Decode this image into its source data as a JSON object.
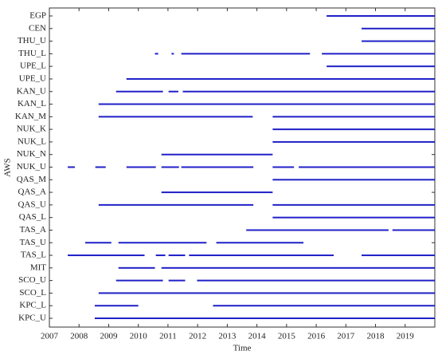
{
  "chart_data": {
    "type": "timeline",
    "x_label": "Time",
    "y_label": "AWS",
    "categories": [
      "EGP",
      "CEN",
      "THU_U",
      "THU_L",
      "UPE_L",
      "UPE_U",
      "KAN_U",
      "KAN_L",
      "KAN_M",
      "NUK_K",
      "NUK_L",
      "NUK_N",
      "NUK_U",
      "QAS_M",
      "QAS_A",
      "QAS_U",
      "QAS_L",
      "TAS_A",
      "TAS_U",
      "TAS_L",
      "MIT",
      "SCO_U",
      "SCO_L",
      "KPC_L",
      "KPC_U"
    ],
    "segments": [
      [
        [
          2016.35,
          2020
        ]
      ],
      [
        [
          2017.53,
          2020
        ]
      ],
      [
        [
          2017.53,
          2020
        ]
      ],
      [
        [
          2010.56,
          2010.67
        ],
        [
          2011.12,
          2011.2
        ],
        [
          2011.45,
          2015.79
        ],
        [
          2016.19,
          2020
        ]
      ],
      [
        [
          2016.35,
          2020
        ]
      ],
      [
        [
          2009.6,
          2020
        ]
      ],
      [
        [
          2009.25,
          2010.83
        ],
        [
          2011.02,
          2011.35
        ],
        [
          2011.5,
          2020
        ]
      ],
      [
        [
          2008.66,
          2020
        ]
      ],
      [
        [
          2008.66,
          2013.86
        ],
        [
          2014.53,
          2020
        ]
      ],
      [
        [
          2014.53,
          2020
        ]
      ],
      [
        [
          2014.53,
          2020
        ]
      ],
      [
        [
          2010.78,
          2014.53
        ]
      ],
      [
        [
          2007.62,
          2007.86
        ],
        [
          2008.55,
          2008.9
        ],
        [
          2009.6,
          2010.59
        ],
        [
          2010.78,
          2011.37
        ],
        [
          2011.45,
          2013.88
        ],
        [
          2014.53,
          2015.25
        ],
        [
          2015.41,
          2020
        ]
      ],
      [
        [
          2014.53,
          2020
        ]
      ],
      [
        [
          2010.78,
          2014.53
        ]
      ],
      [
        [
          2008.66,
          2013.88
        ],
        [
          2014.53,
          2020
        ]
      ],
      [
        [
          2014.53,
          2020
        ]
      ],
      [
        [
          2013.64,
          2018.44
        ],
        [
          2018.57,
          2020
        ]
      ],
      [
        [
          2008.21,
          2009.09
        ],
        [
          2009.33,
          2012.3
        ],
        [
          2012.63,
          2015.57
        ]
      ],
      [
        [
          2007.62,
          2010.21
        ],
        [
          2010.59,
          2010.91
        ],
        [
          2011.02,
          2011.58
        ],
        [
          2011.71,
          2016.59
        ],
        [
          2017.53,
          2020
        ]
      ],
      [
        [
          2009.33,
          2010.56
        ],
        [
          2010.78,
          2020
        ]
      ],
      [
        [
          2009.25,
          2010.83
        ],
        [
          2011.02,
          2011.58
        ],
        [
          2011.98,
          2020
        ]
      ],
      [
        [
          2008.66,
          2020
        ]
      ],
      [
        [
          2008.53,
          2010.0
        ],
        [
          2012.52,
          2020
        ]
      ],
      [
        [
          2008.53,
          2020
        ]
      ]
    ],
    "color": "#2020c8",
    "xlim": [
      2007,
      2020
    ],
    "xticks": [
      2007,
      2008,
      2009,
      2010,
      2011,
      2012,
      2013,
      2014,
      2015,
      2016,
      2017,
      2018,
      2019
    ]
  }
}
